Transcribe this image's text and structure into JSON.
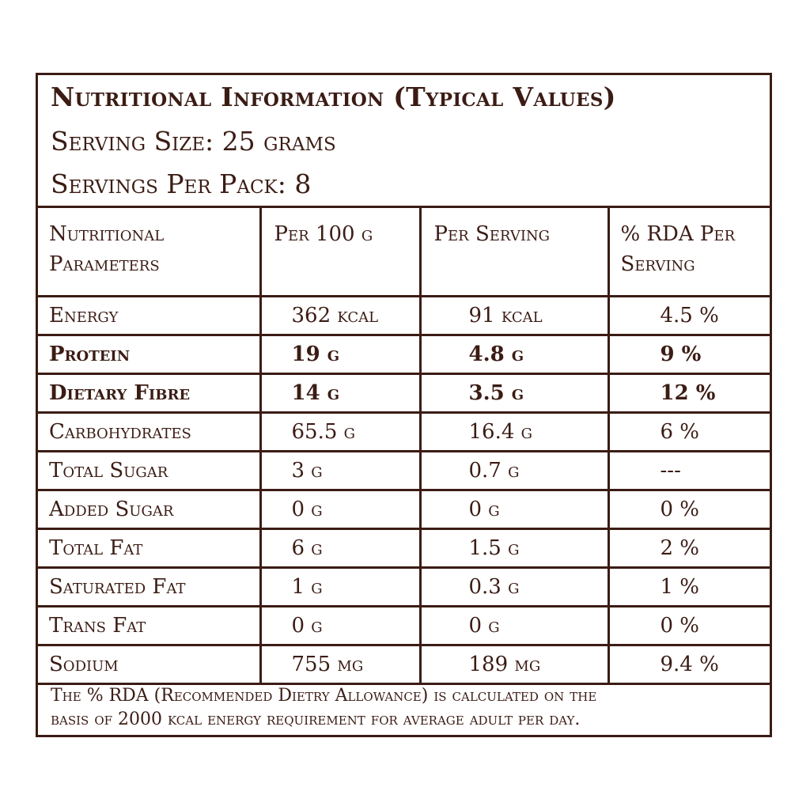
{
  "header": {
    "title": "Nutritional Information (Typical Values)",
    "serving_size": "Serving Size: 25 grams",
    "servings_per_pack": "Servings Per Pack: 8"
  },
  "table": {
    "columns": [
      "Nutritional Parameters",
      "Per 100 g",
      "Per Serving",
      "% RDA Per Serving"
    ],
    "rows": [
      {
        "name": "Energy",
        "per100": "362 kcal",
        "perServing": "91 kcal",
        "rda": "4.5 %",
        "bold": false
      },
      {
        "name": "Protein",
        "per100": "19 g",
        "perServing": "4.8 g",
        "rda": "9 %",
        "bold": true
      },
      {
        "name": "Dietary Fibre",
        "per100": "14 g",
        "perServing": "3.5 g",
        "rda": "12 %",
        "bold": true
      },
      {
        "name": "Carbohydrates",
        "per100": "65.5 g",
        "perServing": "16.4 g",
        "rda": "6 %",
        "bold": false
      },
      {
        "name": "Total Sugar",
        "per100": "3 g",
        "perServing": "0.7 g",
        "rda": "---",
        "bold": false
      },
      {
        "name": "Added Sugar",
        "per100": "0 g",
        "perServing": "0 g",
        "rda": "0 %",
        "bold": false
      },
      {
        "name": "Total Fat",
        "per100": "6 g",
        "perServing": "1.5 g",
        "rda": "2 %",
        "bold": false
      },
      {
        "name": "Saturated Fat",
        "per100": "1 g",
        "perServing": "0.3 g",
        "rda": "1 %",
        "bold": false
      },
      {
        "name": "Trans Fat",
        "per100": "0 g",
        "perServing": "0 g",
        "rda": "0 %",
        "bold": false
      },
      {
        "name": "Sodium",
        "per100": "755 mg",
        "perServing": "189 mg",
        "rda": "9.4 %",
        "bold": false
      }
    ]
  },
  "footnote": {
    "line1": "The % RDA (Recommended Dietry Allowance) is calculated on the",
    "line2": "basis of 2000 kcal energy requirement for average adult per day."
  },
  "colors": {
    "ink": "#3b1c14",
    "background": "#ffffff"
  }
}
